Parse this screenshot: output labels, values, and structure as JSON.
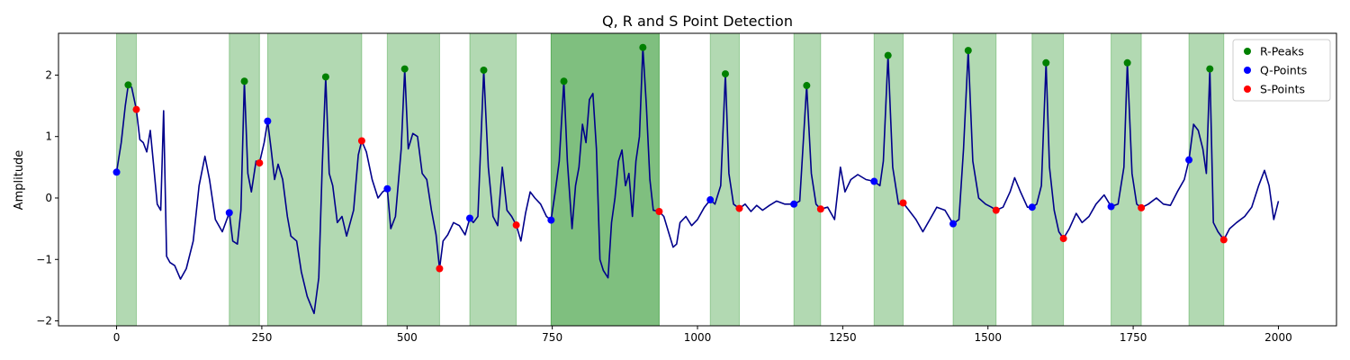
{
  "chart_data": {
    "type": "line",
    "title": "Q, R and S Point Detection",
    "xlabel": "",
    "ylabel": "Amplitude",
    "xlim": [
      -100,
      2100
    ],
    "ylim": [
      -2.08,
      2.68
    ],
    "xticks": [
      0,
      250,
      500,
      750,
      1000,
      1250,
      1500,
      1750,
      2000
    ],
    "yticks": [
      -2,
      -1,
      0,
      1,
      2
    ],
    "grid": false,
    "legend_position": "top-right",
    "signal_color": "#00008b",
    "shade_color": "#008000",
    "signal": [
      [
        0,
        0.42
      ],
      [
        8,
        0.9
      ],
      [
        15,
        1.5
      ],
      [
        20,
        1.84
      ],
      [
        26,
        1.8
      ],
      [
        34,
        1.44
      ],
      [
        40,
        0.95
      ],
      [
        46,
        0.9
      ],
      [
        52,
        0.75
      ],
      [
        58,
        1.1
      ],
      [
        64,
        0.5
      ],
      [
        70,
        -0.1
      ],
      [
        76,
        -0.2
      ],
      [
        81,
        1.42
      ],
      [
        86,
        -0.95
      ],
      [
        92,
        -1.05
      ],
      [
        100,
        -1.1
      ],
      [
        110,
        -1.32
      ],
      [
        120,
        -1.15
      ],
      [
        132,
        -0.7
      ],
      [
        142,
        0.2
      ],
      [
        152,
        0.68
      ],
      [
        160,
        0.3
      ],
      [
        170,
        -0.35
      ],
      [
        182,
        -0.55
      ],
      [
        194,
        -0.24
      ],
      [
        200,
        -0.7
      ],
      [
        208,
        -0.75
      ],
      [
        214,
        -0.2
      ],
      [
        220,
        1.9
      ],
      [
        226,
        0.4
      ],
      [
        232,
        0.1
      ],
      [
        240,
        0.6
      ],
      [
        246,
        0.57
      ],
      [
        254,
        0.9
      ],
      [
        260,
        1.25
      ],
      [
        266,
        0.8
      ],
      [
        272,
        0.3
      ],
      [
        278,
        0.55
      ],
      [
        286,
        0.3
      ],
      [
        294,
        -0.3
      ],
      [
        300,
        -0.62
      ],
      [
        310,
        -0.7
      ],
      [
        318,
        -1.2
      ],
      [
        328,
        -1.6
      ],
      [
        340,
        -1.88
      ],
      [
        348,
        -1.3
      ],
      [
        354,
        0.5
      ],
      [
        360,
        1.97
      ],
      [
        366,
        0.4
      ],
      [
        372,
        0.2
      ],
      [
        380,
        -0.4
      ],
      [
        388,
        -0.3
      ],
      [
        396,
        -0.62
      ],
      [
        408,
        -0.2
      ],
      [
        416,
        0.7
      ],
      [
        422,
        0.93
      ],
      [
        430,
        0.75
      ],
      [
        440,
        0.3
      ],
      [
        450,
        0.0
      ],
      [
        458,
        0.1
      ],
      [
        466,
        0.15
      ],
      [
        472,
        -0.5
      ],
      [
        480,
        -0.3
      ],
      [
        490,
        0.8
      ],
      [
        496,
        2.1
      ],
      [
        502,
        0.8
      ],
      [
        510,
        1.05
      ],
      [
        518,
        1.0
      ],
      [
        526,
        0.4
      ],
      [
        534,
        0.3
      ],
      [
        542,
        -0.2
      ],
      [
        550,
        -0.6
      ],
      [
        556,
        -1.15
      ],
      [
        562,
        -0.7
      ],
      [
        570,
        -0.6
      ],
      [
        580,
        -0.4
      ],
      [
        590,
        -0.45
      ],
      [
        600,
        -0.6
      ],
      [
        608,
        -0.33
      ],
      [
        614,
        -0.4
      ],
      [
        622,
        -0.3
      ],
      [
        632,
        2.08
      ],
      [
        640,
        0.5
      ],
      [
        648,
        -0.3
      ],
      [
        656,
        -0.45
      ],
      [
        664,
        0.5
      ],
      [
        672,
        -0.2
      ],
      [
        680,
        -0.3
      ],
      [
        688,
        -0.44
      ],
      [
        696,
        -0.7
      ],
      [
        704,
        -0.25
      ],
      [
        712,
        0.1
      ],
      [
        720,
        0.0
      ],
      [
        730,
        -0.1
      ],
      [
        740,
        -0.3
      ],
      [
        748,
        -0.36
      ],
      [
        755,
        0.1
      ],
      [
        762,
        0.6
      ],
      [
        770,
        1.9
      ],
      [
        776,
        0.6
      ],
      [
        784,
        -0.5
      ],
      [
        790,
        0.2
      ],
      [
        796,
        0.5
      ],
      [
        802,
        1.2
      ],
      [
        808,
        0.9
      ],
      [
        814,
        1.6
      ],
      [
        820,
        1.7
      ],
      [
        826,
        0.8
      ],
      [
        832,
        -1.0
      ],
      [
        838,
        -1.18
      ],
      [
        846,
        -1.3
      ],
      [
        852,
        -0.4
      ],
      [
        858,
        0.0
      ],
      [
        864,
        0.6
      ],
      [
        870,
        0.78
      ],
      [
        876,
        0.2
      ],
      [
        882,
        0.4
      ],
      [
        888,
        -0.3
      ],
      [
        894,
        0.6
      ],
      [
        900,
        1.0
      ],
      [
        906,
        2.45
      ],
      [
        912,
        1.5
      ],
      [
        918,
        0.3
      ],
      [
        924,
        -0.2
      ],
      [
        934,
        -0.22
      ],
      [
        942,
        -0.3
      ],
      [
        950,
        -0.55
      ],
      [
        958,
        -0.8
      ],
      [
        964,
        -0.75
      ],
      [
        970,
        -0.4
      ],
      [
        980,
        -0.3
      ],
      [
        990,
        -0.45
      ],
      [
        1000,
        -0.35
      ],
      [
        1012,
        -0.15
      ],
      [
        1022,
        -0.03
      ],
      [
        1030,
        -0.1
      ],
      [
        1040,
        0.2
      ],
      [
        1048,
        2.02
      ],
      [
        1054,
        0.4
      ],
      [
        1062,
        -0.1
      ],
      [
        1072,
        -0.17
      ],
      [
        1082,
        -0.1
      ],
      [
        1092,
        -0.22
      ],
      [
        1102,
        -0.12
      ],
      [
        1112,
        -0.2
      ],
      [
        1124,
        -0.12
      ],
      [
        1136,
        -0.05
      ],
      [
        1150,
        -0.1
      ],
      [
        1166,
        -0.1
      ],
      [
        1176,
        -0.05
      ],
      [
        1188,
        1.83
      ],
      [
        1196,
        0.4
      ],
      [
        1204,
        -0.1
      ],
      [
        1212,
        -0.18
      ],
      [
        1224,
        -0.15
      ],
      [
        1236,
        -0.35
      ],
      [
        1246,
        0.5
      ],
      [
        1254,
        0.1
      ],
      [
        1264,
        0.3
      ],
      [
        1276,
        0.38
      ],
      [
        1290,
        0.3
      ],
      [
        1304,
        0.27
      ],
      [
        1314,
        0.2
      ],
      [
        1320,
        0.6
      ],
      [
        1328,
        2.32
      ],
      [
        1336,
        0.5
      ],
      [
        1346,
        -0.1
      ],
      [
        1354,
        -0.08
      ],
      [
        1364,
        -0.2
      ],
      [
        1376,
        -0.35
      ],
      [
        1388,
        -0.55
      ],
      [
        1400,
        -0.35
      ],
      [
        1412,
        -0.15
      ],
      [
        1426,
        -0.2
      ],
      [
        1440,
        -0.42
      ],
      [
        1450,
        -0.35
      ],
      [
        1458,
        0.8
      ],
      [
        1466,
        2.4
      ],
      [
        1474,
        0.6
      ],
      [
        1484,
        0.0
      ],
      [
        1496,
        -0.1
      ],
      [
        1506,
        -0.15
      ],
      [
        1514,
        -0.2
      ],
      [
        1526,
        -0.15
      ],
      [
        1538,
        0.1
      ],
      [
        1546,
        0.33
      ],
      [
        1556,
        0.1
      ],
      [
        1568,
        -0.15
      ],
      [
        1576,
        -0.15
      ],
      [
        1584,
        -0.1
      ],
      [
        1592,
        0.2
      ],
      [
        1600,
        2.2
      ],
      [
        1606,
        0.5
      ],
      [
        1614,
        -0.2
      ],
      [
        1622,
        -0.55
      ],
      [
        1630,
        -0.66
      ],
      [
        1640,
        -0.5
      ],
      [
        1652,
        -0.25
      ],
      [
        1662,
        -0.4
      ],
      [
        1674,
        -0.3
      ],
      [
        1686,
        -0.1
      ],
      [
        1700,
        0.05
      ],
      [
        1712,
        -0.14
      ],
      [
        1724,
        -0.1
      ],
      [
        1734,
        0.5
      ],
      [
        1740,
        2.2
      ],
      [
        1748,
        0.4
      ],
      [
        1756,
        -0.1
      ],
      [
        1764,
        -0.16
      ],
      [
        1776,
        -0.1
      ],
      [
        1790,
        0.0
      ],
      [
        1802,
        -0.1
      ],
      [
        1814,
        -0.12
      ],
      [
        1826,
        0.1
      ],
      [
        1838,
        0.3
      ],
      [
        1846,
        0.62
      ],
      [
        1854,
        1.2
      ],
      [
        1862,
        1.1
      ],
      [
        1870,
        0.8
      ],
      [
        1876,
        0.4
      ],
      [
        1882,
        2.1
      ],
      [
        1888,
        -0.4
      ],
      [
        1896,
        -0.55
      ],
      [
        1906,
        -0.68
      ],
      [
        1916,
        -0.5
      ],
      [
        1928,
        -0.4
      ],
      [
        1942,
        -0.3
      ],
      [
        1954,
        -0.15
      ],
      [
        1966,
        0.2
      ],
      [
        1976,
        0.45
      ],
      [
        1984,
        0.2
      ],
      [
        1992,
        -0.35
      ],
      [
        2000,
        -0.05
      ]
    ],
    "shaded_regions": [
      {
        "start": 0,
        "end": 34,
        "alpha": 0.3
      },
      {
        "start": 194,
        "end": 246,
        "alpha": 0.3
      },
      {
        "start": 260,
        "end": 422,
        "alpha": 0.3
      },
      {
        "start": 466,
        "end": 556,
        "alpha": 0.3
      },
      {
        "start": 608,
        "end": 688,
        "alpha": 0.3
      },
      {
        "start": 748,
        "end": 934,
        "alpha": 0.5
      },
      {
        "start": 1022,
        "end": 1072,
        "alpha": 0.3
      },
      {
        "start": 1166,
        "end": 1212,
        "alpha": 0.3
      },
      {
        "start": 1304,
        "end": 1354,
        "alpha": 0.3
      },
      {
        "start": 1440,
        "end": 1514,
        "alpha": 0.3
      },
      {
        "start": 1576,
        "end": 1630,
        "alpha": 0.3
      },
      {
        "start": 1712,
        "end": 1764,
        "alpha": 0.3
      },
      {
        "start": 1846,
        "end": 1906,
        "alpha": 0.3
      }
    ],
    "series": [
      {
        "name": "R-Peaks",
        "color": "#008000",
        "points": [
          [
            20,
            1.84
          ],
          [
            220,
            1.9
          ],
          [
            360,
            1.97
          ],
          [
            496,
            2.1
          ],
          [
            632,
            2.08
          ],
          [
            770,
            1.9
          ],
          [
            906,
            2.45
          ],
          [
            1048,
            2.02
          ],
          [
            1188,
            1.83
          ],
          [
            1328,
            2.32
          ],
          [
            1466,
            2.4
          ],
          [
            1600,
            2.2
          ],
          [
            1740,
            2.2
          ],
          [
            1882,
            2.1
          ]
        ]
      },
      {
        "name": "Q-Points",
        "color": "#0000ff",
        "points": [
          [
            0,
            0.42
          ],
          [
            194,
            -0.24
          ],
          [
            260,
            1.25
          ],
          [
            466,
            0.15
          ],
          [
            608,
            -0.33
          ],
          [
            748,
            -0.36
          ],
          [
            1022,
            -0.03
          ],
          [
            1166,
            -0.1
          ],
          [
            1304,
            0.27
          ],
          [
            1440,
            -0.42
          ],
          [
            1576,
            -0.15
          ],
          [
            1712,
            -0.14
          ],
          [
            1846,
            0.62
          ]
        ]
      },
      {
        "name": "S-Points",
        "color": "#ff0000",
        "points": [
          [
            34,
            1.44
          ],
          [
            246,
            0.57
          ],
          [
            422,
            0.93
          ],
          [
            556,
            -1.15
          ],
          [
            688,
            -0.44
          ],
          [
            934,
            -0.22
          ],
          [
            1072,
            -0.17
          ],
          [
            1212,
            -0.18
          ],
          [
            1354,
            -0.08
          ],
          [
            1514,
            -0.2
          ],
          [
            1630,
            -0.66
          ],
          [
            1764,
            -0.16
          ],
          [
            1906,
            -0.68
          ]
        ]
      }
    ]
  }
}
